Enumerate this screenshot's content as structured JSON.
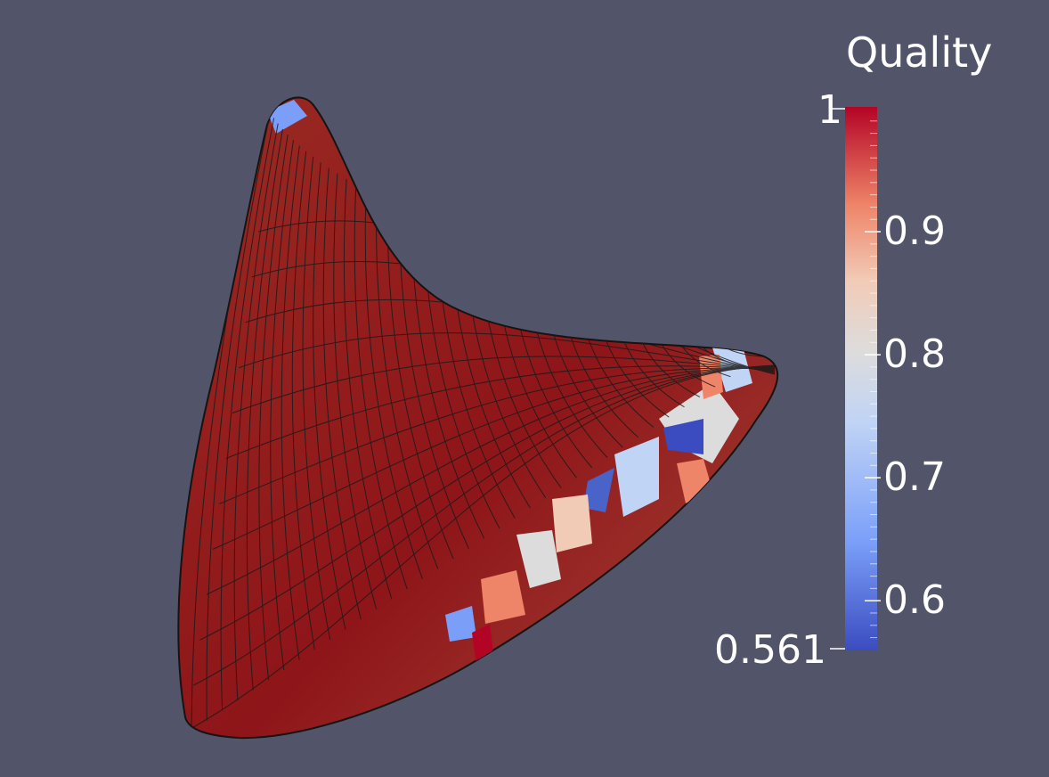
{
  "scalar_bar": {
    "title": "Quality",
    "min_label": "0.561",
    "max_label": "1",
    "range": [
      0.561,
      1.0
    ],
    "ticks": [
      {
        "value": 0.9,
        "label": "0.9"
      },
      {
        "value": 0.8,
        "label": "0.8"
      },
      {
        "value": 0.7,
        "label": "0.7"
      },
      {
        "value": 0.6,
        "label": "0.6"
      }
    ],
    "colormap": [
      "#3b4cc0",
      "#7b9ff9",
      "#c0d4f5",
      "#dddcdc",
      "#f2cbb7",
      "#ee8468",
      "#b40426"
    ]
  },
  "colors": {
    "background": "#525569",
    "mesh_high_quality": "#8c1418",
    "mesh_edges": "#1a1a1a",
    "label_text": "#ffffff"
  }
}
